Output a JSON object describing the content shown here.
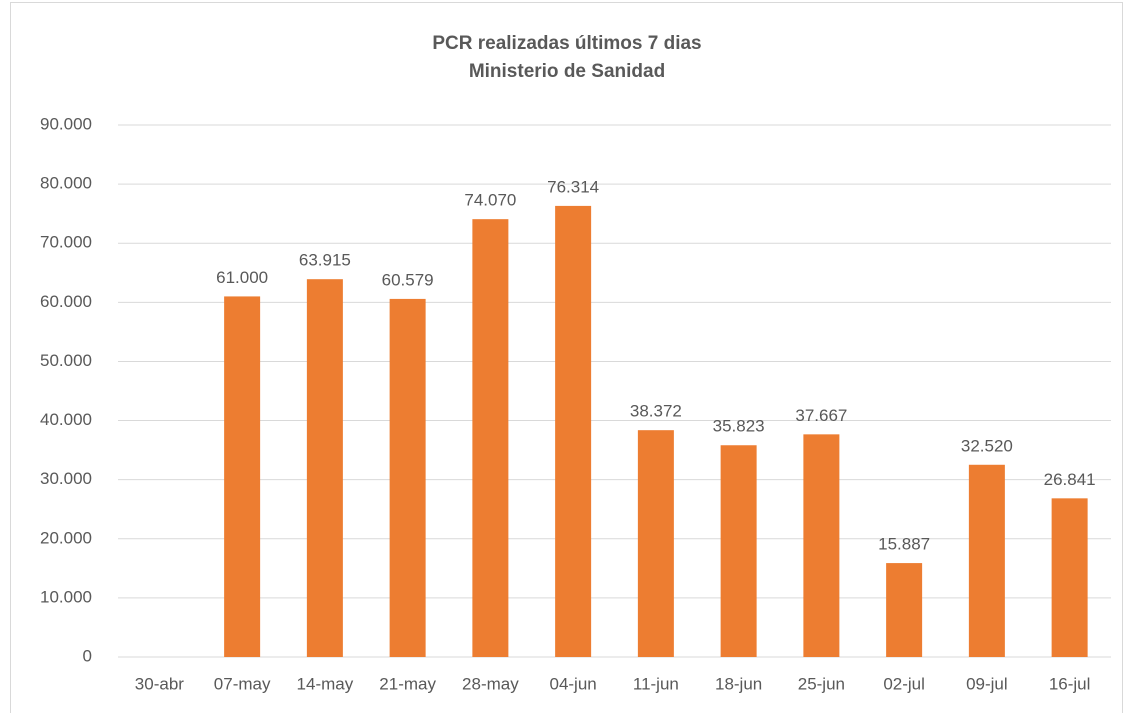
{
  "chart_data": {
    "type": "bar",
    "title": "PCR realizadas últimos 7 dias",
    "subtitle": "Ministerio de Sanidad",
    "categories": [
      "30-abr",
      "07-may",
      "14-may",
      "21-may",
      "28-may",
      "04-jun",
      "11-jun",
      "18-jun",
      "25-jun",
      "02-jul",
      "09-jul",
      "16-jul"
    ],
    "values": [
      null,
      61000,
      63915,
      60579,
      74070,
      76314,
      38372,
      35823,
      37667,
      15887,
      32520,
      26841
    ],
    "value_labels": [
      null,
      "61.000",
      "63.915",
      "60.579",
      "74.070",
      "76.314",
      "38.372",
      "35.823",
      "37.667",
      "15.887",
      "32.520",
      "26.841"
    ],
    "color": "#ed7d31",
    "ylim": [
      0,
      90000
    ],
    "yticks": [
      0,
      {
        "value": 10000,
        "label": "10.000"
      },
      {
        "value": 20000,
        "label": "20.000"
      },
      {
        "value": 30000,
        "label": "30.000"
      },
      {
        "value": 40000,
        "label": "40.000"
      },
      {
        "value": 50000,
        "label": "50.000"
      },
      {
        "value": 60000,
        "label": "60.000"
      },
      {
        "value": 70000,
        "label": "70.000"
      },
      {
        "value": 80000,
        "label": "80.000"
      },
      {
        "value": 90000,
        "label": "90.000"
      }
    ],
    "grid": true
  }
}
